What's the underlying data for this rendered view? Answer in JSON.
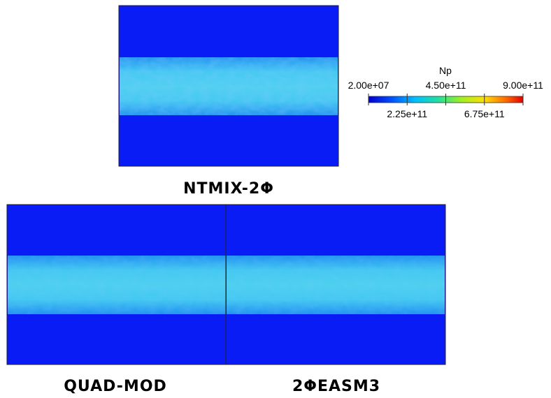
{
  "panels": [
    {
      "label": "NTMIX-2Φ"
    },
    {
      "label": "QUAD-MOD"
    },
    {
      "label": "2ΦEASM3"
    }
  ],
  "colorbar": {
    "title": "Np",
    "range": [
      20000000,
      900000000000
    ],
    "ticks": [
      {
        "value": 20000000,
        "label": "2.00e+07"
      },
      {
        "value": 225000000000,
        "label": "2.25e+11"
      },
      {
        "value": 450000000000,
        "label": "4.50e+11"
      },
      {
        "value": 675000000000,
        "label": "6.75e+11"
      },
      {
        "value": 900000000000,
        "label": "9.00e+11"
      }
    ]
  }
}
